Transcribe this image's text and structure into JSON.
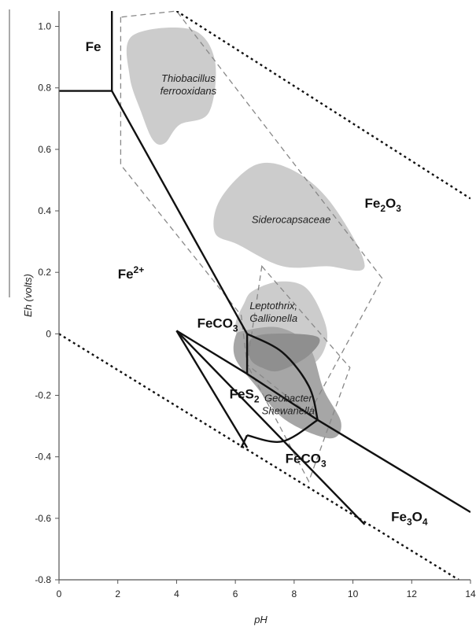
{
  "chart_data": {
    "type": "diagram",
    "xlabel": "pH",
    "ylabel": "Eh (volts)",
    "xlim": [
      0,
      14
    ],
    "ylim": [
      -0.8,
      1.05
    ],
    "x_ticks": [
      {
        "value": 0,
        "label": "0"
      },
      {
        "value": 2,
        "label": "2"
      },
      {
        "value": 4,
        "label": "4"
      },
      {
        "value": 6,
        "label": "6"
      },
      {
        "value": 8,
        "label": "8"
      },
      {
        "value": 10,
        "label": "10"
      },
      {
        "value": 12,
        "label": "12"
      },
      {
        "value": 14,
        "label": "14"
      }
    ],
    "y_ticks": [
      {
        "value": 1.0,
        "label": "1.0"
      },
      {
        "value": 0.8,
        "label": "0.8"
      },
      {
        "value": 0.6,
        "label": "0.6"
      },
      {
        "value": 0.4,
        "label": "0.4"
      },
      {
        "value": 0.2,
        "label": "0.2"
      },
      {
        "value": 0.0,
        "label": "0"
      },
      {
        "value": -0.2,
        "label": "-0.2"
      },
      {
        "value": -0.4,
        "label": "-0.4"
      },
      {
        "value": -0.6,
        "label": "-0.6"
      },
      {
        "value": -0.8,
        "label": "-0.8"
      }
    ],
    "water_stability_lines": [
      {
        "points": [
          [
            4.0,
            1.05
          ],
          [
            14.0,
            0.44
          ]
        ]
      },
      {
        "points": [
          [
            0.0,
            0.0
          ],
          [
            13.6,
            -0.8
          ]
        ]
      }
    ],
    "phase_boundaries": [
      {
        "points": [
          [
            1.8,
            1.05
          ],
          [
            1.8,
            0.79
          ]
        ]
      },
      {
        "points": [
          [
            0.0,
            0.79
          ],
          [
            1.8,
            0.79
          ]
        ]
      },
      {
        "points": [
          [
            1.8,
            0.79
          ],
          [
            6.4,
            0.0
          ]
        ]
      },
      {
        "points": [
          [
            6.4,
            0.0
          ],
          [
            6.4,
            -0.13
          ]
        ]
      },
      {
        "points": [
          [
            4.0,
            0.01
          ],
          [
            6.4,
            -0.13
          ],
          [
            8.8,
            -0.28
          ],
          [
            14.0,
            -0.58
          ]
        ]
      },
      {
        "points": [
          [
            4.0,
            0.01
          ],
          [
            6.4,
            -0.37
          ]
        ]
      },
      {
        "points": [
          [
            4.0,
            0.01
          ],
          [
            10.4,
            -0.62
          ]
        ]
      },
      {
        "points": [
          [
            6.4,
            0.0
          ],
          [
            7.6,
            -0.06
          ],
          [
            8.5,
            -0.17
          ],
          [
            8.8,
            -0.28
          ]
        ],
        "curve": true
      },
      {
        "points": [
          [
            6.4,
            -0.33
          ],
          [
            7.6,
            -0.35
          ],
          [
            8.8,
            -0.28
          ]
        ],
        "curve": true
      },
      {
        "points": [
          [
            6.4,
            -0.33
          ],
          [
            6.2,
            -0.37
          ]
        ]
      }
    ],
    "dashed_envelopes": [
      {
        "points": [
          [
            2.1,
            1.03
          ],
          [
            2.1,
            0.55
          ],
          [
            6.2,
            0.06
          ],
          [
            6.4,
            -0.1
          ],
          [
            8.5,
            -0.26
          ],
          [
            11.0,
            0.18
          ],
          [
            4.0,
            1.05
          ]
        ]
      },
      {
        "points": [
          [
            6.9,
            0.22
          ],
          [
            9.9,
            -0.11
          ],
          [
            8.5,
            -0.48
          ],
          [
            6.4,
            -0.1
          ]
        ]
      }
    ],
    "microbial_zones": [
      {
        "label_lines": [
          "Thiobacillus",
          "ferrooxidans"
        ],
        "label_at": [
          4.4,
          0.82
        ],
        "shade": "#cccccc",
        "outline": [
          [
            2.5,
            0.97
          ],
          [
            4.5,
            0.99
          ],
          [
            5.3,
            0.89
          ],
          [
            5.1,
            0.72
          ],
          [
            4.1,
            0.68
          ],
          [
            3.6,
            0.62
          ],
          [
            3.2,
            0.63
          ],
          [
            2.8,
            0.72
          ],
          [
            2.4,
            0.84
          ]
        ]
      },
      {
        "label_lines": [
          "Siderocapsaceae"
        ],
        "label_at": [
          7.9,
          0.36
        ],
        "shade": "#cccccc",
        "outline": [
          [
            5.5,
            0.44
          ],
          [
            6.7,
            0.55
          ],
          [
            8.0,
            0.53
          ],
          [
            9.3,
            0.42
          ],
          [
            10.4,
            0.22
          ],
          [
            9.1,
            0.22
          ],
          [
            7.6,
            0.22
          ],
          [
            6.1,
            0.29
          ],
          [
            5.3,
            0.33
          ]
        ]
      },
      {
        "label_lines": [
          "Leptothrix,",
          "Gallionella"
        ],
        "label_at": [
          7.3,
          0.08
        ],
        "shade": "#cccccc",
        "outline": [
          [
            6.6,
            0.14
          ],
          [
            7.5,
            0.17
          ],
          [
            8.4,
            0.15
          ],
          [
            9.0,
            0.05
          ],
          [
            9.1,
            -0.03
          ],
          [
            8.6,
            -0.1
          ],
          [
            7.4,
            -0.11
          ],
          [
            6.4,
            -0.06
          ],
          [
            6.0,
            0.02
          ],
          [
            6.3,
            0.1
          ]
        ]
      },
      {
        "label_lines": [
          "Geobacter",
          "Shewanella"
        ],
        "label_at": [
          7.8,
          -0.22
        ],
        "shade": "#a6a6a6",
        "outline": [
          [
            6.3,
            0.01
          ],
          [
            7.5,
            0.02
          ],
          [
            8.5,
            -0.04
          ],
          [
            9.0,
            -0.18
          ],
          [
            9.6,
            -0.29
          ],
          [
            9.2,
            -0.34
          ],
          [
            7.7,
            -0.28
          ],
          [
            6.7,
            -0.17
          ],
          [
            6.0,
            -0.08
          ],
          [
            6.0,
            -0.01
          ]
        ]
      },
      {
        "label_lines": [],
        "shade": "#8f8f8f",
        "outline": [
          [
            6.5,
            -0.02
          ],
          [
            7.2,
            0.0
          ],
          [
            8.8,
            -0.01
          ],
          [
            8.5,
            -0.07
          ],
          [
            7.5,
            -0.12
          ],
          [
            6.9,
            -0.11
          ],
          [
            6.5,
            -0.08
          ]
        ]
      }
    ],
    "phase_labels": [
      {
        "base": "Fe",
        "sub": "",
        "sup": "",
        "at": [
          0.9,
          0.92
        ]
      },
      {
        "base": "Fe",
        "sub": "2",
        "sup": "",
        "at": [
          10.4,
          0.41
        ]
      },
      {
        "base": "Fe",
        "sub": "",
        "sup": "2+",
        "at": [
          2.0,
          0.18
        ]
      },
      {
        "base": "FeCO",
        "sub": "3",
        "sup": "",
        "at": [
          4.7,
          0.02
        ]
      },
      {
        "base": "FeS",
        "sub": "2",
        "sup": "",
        "at": [
          5.8,
          -0.21
        ]
      },
      {
        "base": "FeCO",
        "sub": "3",
        "sup": "",
        "at": [
          7.7,
          -0.42
        ]
      },
      {
        "base": "Fe",
        "sub": "3",
        "sup": "",
        "at": [
          11.3,
          -0.61
        ]
      }
    ],
    "phase_label_suffixes": [
      {
        "index": 1,
        "text": "O"
      },
      {
        "index": 1,
        "text": "3",
        "sub": true
      },
      {
        "index": 6,
        "text": "O"
      },
      {
        "index": 6,
        "text": "4",
        "sub": true
      }
    ],
    "grid": false,
    "legend": "none"
  }
}
